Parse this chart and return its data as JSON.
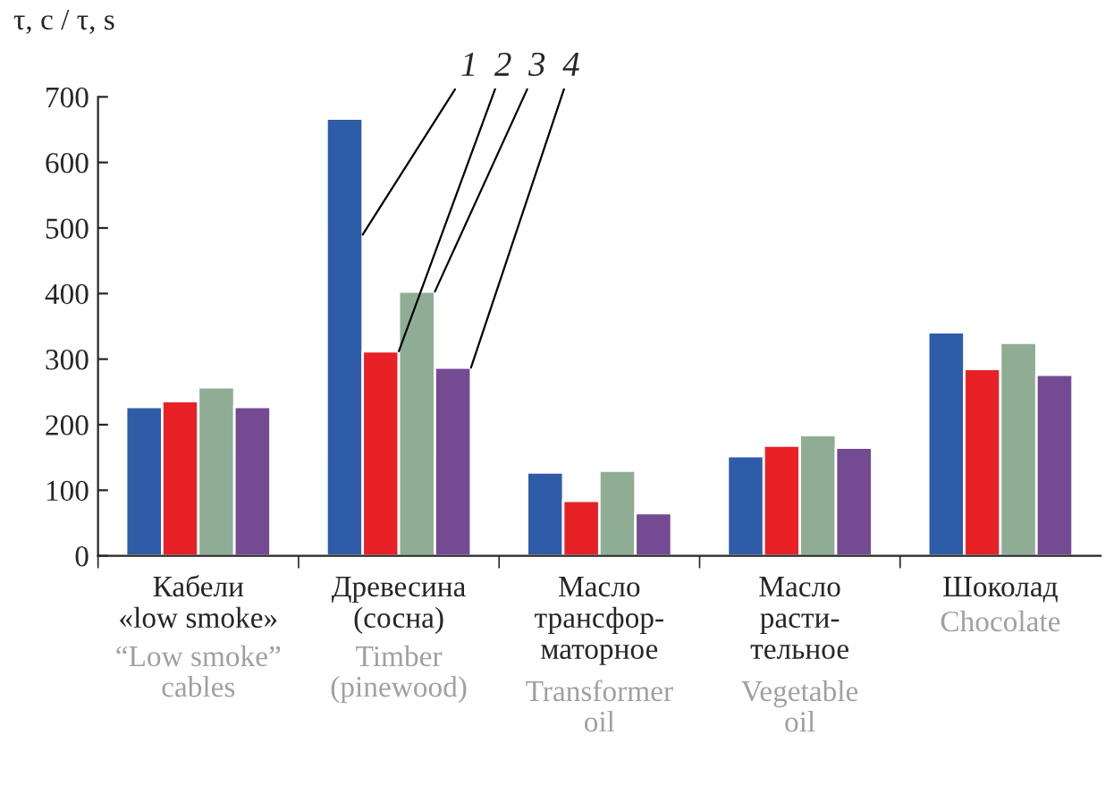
{
  "chart_data": {
    "type": "bar",
    "ylabel": "τ, c / τ, s",
    "categories": [
      "Кабели\n«low smoke»",
      "Древесина\n(сосна)",
      "Масло\nтрансфор-\nматорное",
      "Масло\nрасти-\nтельное",
      "Шоколад"
    ],
    "series": [
      {
        "name": "1",
        "color": "#2e5ca8",
        "values": [
          227,
          667,
          127,
          152,
          341
        ]
      },
      {
        "name": "2",
        "color": "#e82127",
        "values": [
          236,
          312,
          84,
          168,
          285
        ]
      },
      {
        "name": "3",
        "color": "#8fad94",
        "values": [
          257,
          403,
          130,
          184,
          325
        ]
      },
      {
        "name": "4",
        "color": "#744a93",
        "values": [
          227,
          287,
          65,
          165,
          276
        ]
      }
    ],
    "ylim": [
      0,
      700
    ],
    "yticks": [
      0,
      100,
      200,
      300,
      400,
      500,
      600,
      700
    ],
    "grid": false,
    "legend": false,
    "annotations": [
      "“Low smoke”\ncables",
      "Timber\n(pinewood)",
      "Transformer\noil",
      "Vegetable\noil",
      "Chocolate"
    ]
  }
}
